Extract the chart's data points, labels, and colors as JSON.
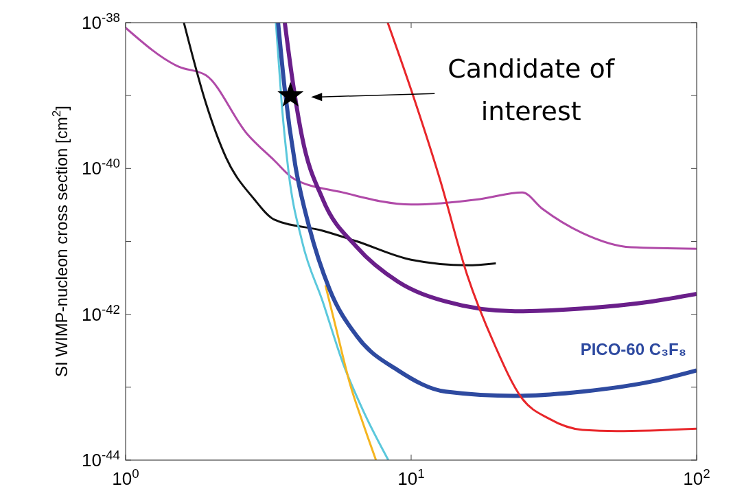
{
  "chart_data": {
    "type": "line",
    "ylabel": "SI WIMP-nucleon cross section [cm$^{2}$]",
    "log": "xy",
    "grid": false,
    "xlim": [
      1,
      100
    ],
    "ylim": [
      1e-44,
      1e-38
    ],
    "xticks": [
      {
        "value": 1,
        "label": "10$^{0}$"
      },
      {
        "value": 10,
        "label": "10$^{1}$"
      },
      {
        "value": 100,
        "label": "10$^{2}$"
      }
    ],
    "yticks": [
      {
        "value": 1e-44,
        "label": "10$^{-44}$"
      },
      {
        "value": 1e-43,
        "label": null
      },
      {
        "value": 1e-42,
        "label": "10$^{-42}$"
      },
      {
        "value": 1e-41,
        "label": null
      },
      {
        "value": 1e-40,
        "label": "10$^{-40}$"
      },
      {
        "value": 1e-39,
        "label": null
      },
      {
        "value": 1e-38,
        "label": "10$^{-38}$"
      }
    ],
    "series": [
      {
        "color": "#b04aa8",
        "x": [
          1,
          1.53,
          1.91,
          2.66,
          3.31,
          3.89,
          5.75,
          10,
          17.4,
          24.5,
          28.8,
          39.8,
          58.9,
          100
        ],
        "values": [
          8.5e-39,
          2.5e-39,
          1.9e-39,
          3e-40,
          1.3e-40,
          7.2e-41,
          4.7e-41,
          3.2e-41,
          3.8e-41,
          4.7e-41,
          2.8e-41,
          1.3e-41,
          8.3e-42,
          7.9e-42
        ]
      },
      {
        "color": "#111111",
        "x": [
          1.6,
          1.91,
          2.25,
          2.82,
          3.31,
          4.9,
          6.46,
          10,
          15.7,
          19.8
        ],
        "values": [
          1e-38,
          7.9e-40,
          1.4e-40,
          3.8e-41,
          2e-41,
          1.4e-41,
          1e-41,
          5.6e-42,
          4.7e-42,
          5e-42
        ]
      },
      {
        "color": "#5bc8dc",
        "x": [
          3.36,
          3.52,
          3.72,
          4.15,
          4.9,
          5.78,
          6.82,
          8.32
        ],
        "values": [
          1e-38,
          7.9e-40,
          9.1e-41,
          1e-41,
          1.5e-42,
          2.1e-43,
          4.6e-44,
          1e-44
        ]
      },
      {
        "color": "#f5b520",
        "x": [
          5.01,
          5.47,
          6.11,
          6.82,
          7.53
        ],
        "values": [
          2.5e-42,
          6.2e-43,
          1.1e-43,
          3e-44,
          1e-44
        ]
      },
      {
        "name": "PICO-60 C₃F₈",
        "color": "#2e4aa0",
        "x": [
          3.42,
          3.61,
          3.93,
          4.39,
          5.18,
          6.46,
          9.0,
          13.2,
          23.1,
          39.8,
          69.8,
          100
        ],
        "values": [
          1e-38,
          1.2e-39,
          1.1e-40,
          1.6e-41,
          2.2e-42,
          5e-43,
          1.7e-43,
          8.7e-44,
          7.6e-44,
          8.7e-44,
          1.2e-43,
          1.7e-43
        ]
      },
      {
        "color": "#6a1f8a",
        "x": [
          3.61,
          3.82,
          4.15,
          4.9,
          6.46,
          9.0,
          13.2,
          23.1,
          39.8,
          69.8,
          100
        ],
        "values": [
          1e-38,
          1.9e-39,
          2.7e-40,
          3.8e-41,
          8.3e-42,
          2.8e-42,
          1.5e-42,
          1.1e-42,
          1.2e-42,
          1.5e-42,
          1.9e-42
        ]
      },
      {
        "color": "#e8262a",
        "x": [
          8.28,
          10,
          12.6,
          15.7,
          19.5,
          24.4,
          30.4,
          39.8,
          52.5,
          100
        ],
        "values": [
          1e-38,
          1.2e-39,
          7.2e-41,
          3.5e-42,
          4e-43,
          7.1e-44,
          3.7e-44,
          2.6e-44,
          2.5e-44,
          2.7e-44
        ]
      },
      {
        "type": "scatter",
        "marker": "star",
        "color": "#000000",
        "x": [
          3.78
        ],
        "values": [
          1e-39
        ]
      }
    ],
    "annotations": [
      "Candidate of interest"
    ]
  }
}
